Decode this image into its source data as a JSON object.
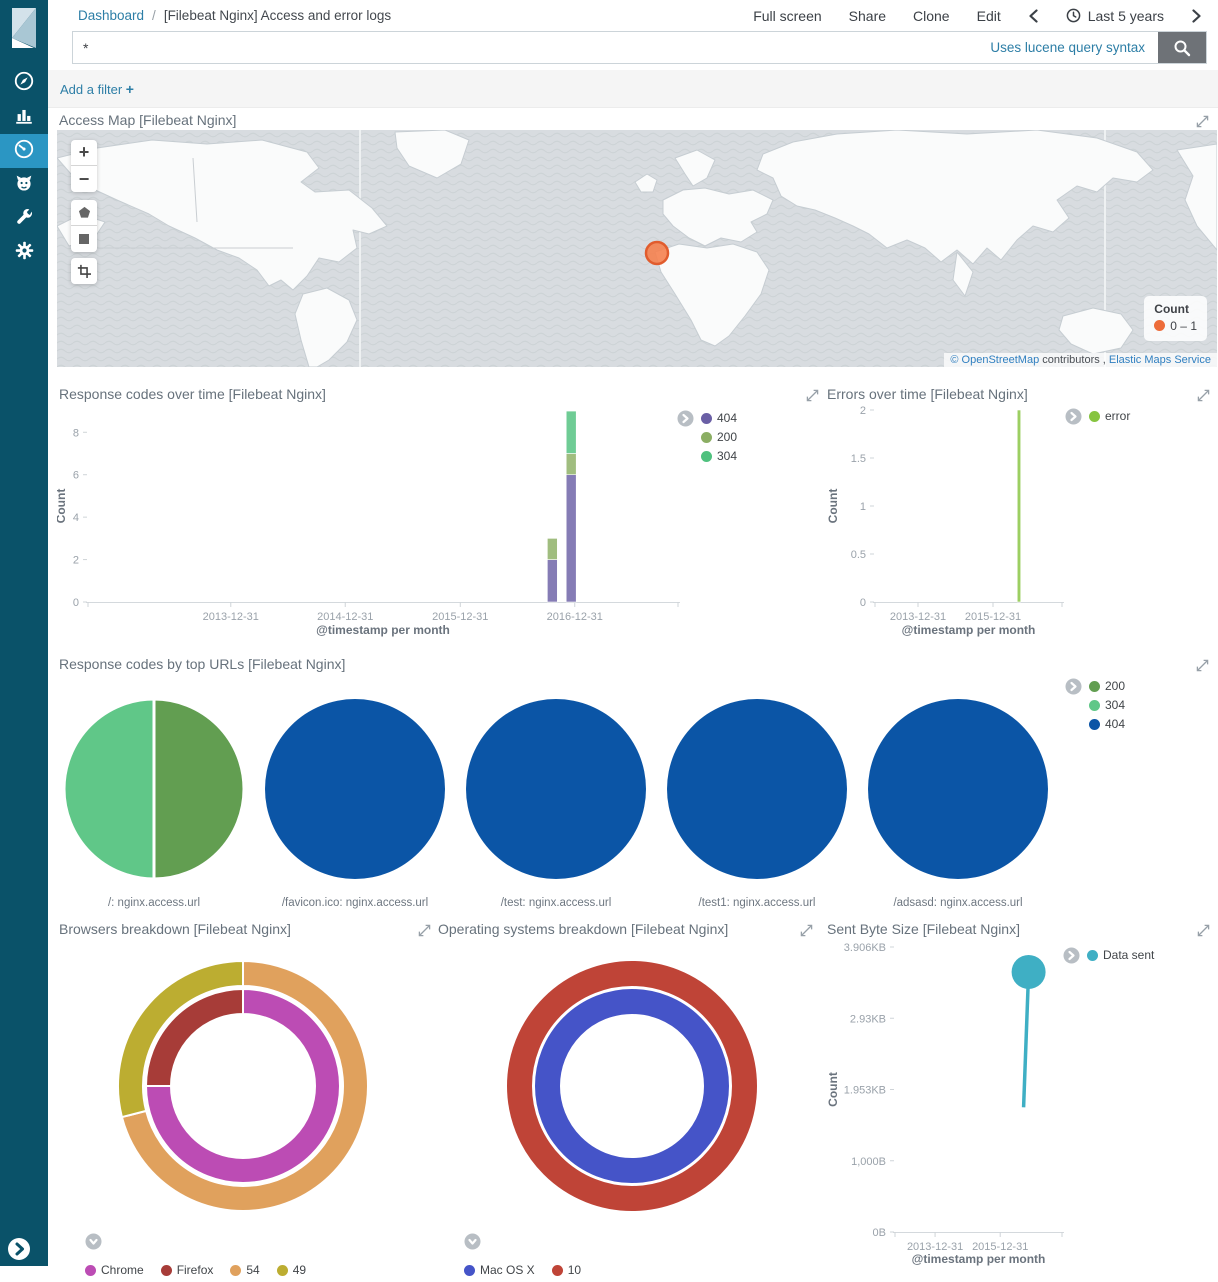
{
  "sidebar": {
    "items": [
      {
        "id": "discover",
        "icon": "compass-icon",
        "active": false
      },
      {
        "id": "visualize",
        "icon": "bar-chart-icon",
        "active": false
      },
      {
        "id": "dashboard",
        "icon": "gauge-icon",
        "active": true
      },
      {
        "id": "timelion",
        "icon": "timelion-icon",
        "active": false
      },
      {
        "id": "dev-tools",
        "icon": "wrench-icon",
        "active": false
      },
      {
        "id": "management",
        "icon": "gear-icon",
        "active": false
      }
    ],
    "colors": {
      "background": "#0a5269",
      "active_background": "#2b96c3"
    }
  },
  "header": {
    "breadcrumb": {
      "root": "Dashboard",
      "separator": "/",
      "current": "[Filebeat Nginx] Access and error logs"
    },
    "menu": {
      "full_screen": "Full screen",
      "share": "Share",
      "clone": "Clone",
      "edit": "Edit"
    },
    "time_picker": {
      "label": "Last 5 years"
    }
  },
  "search": {
    "value": "*",
    "hint": "Uses lucene query syntax"
  },
  "filter_bar": {
    "label": "Add a filter",
    "plus": "+"
  },
  "map": {
    "title": "Access Map [Filebeat Nginx]",
    "controls": {
      "zoom_in": "+",
      "zoom_out": "−",
      "tools": [
        "draw-polygon",
        "draw-rectangle",
        "crop"
      ]
    },
    "legend": {
      "title": "Count",
      "range": "0 – 1",
      "dot_color": "#ed6c3a"
    },
    "marker": {
      "fill": "#f5814f",
      "stroke": "#e15c2d"
    },
    "attribution": {
      "osm_link": "© OpenStreetMap",
      "middle": " contributors , ",
      "elastic_link": "Elastic Maps Service"
    }
  },
  "chart_data": [
    {
      "id": "response-codes",
      "type": "bar",
      "title": "Response codes over time [Filebeat Nginx]",
      "ylabel": "Count",
      "xlabel": "@timestamp per month",
      "ylim": [
        0,
        9.05
      ],
      "yticks": [
        {
          "v": 0,
          "label": "0"
        },
        {
          "v": 2,
          "label": "2"
        },
        {
          "v": 4,
          "label": "4"
        },
        {
          "v": 6,
          "label": "6"
        },
        {
          "v": 8,
          "label": "8"
        }
      ],
      "xticks": [
        {
          "f": 0.242,
          "label": "2013-12-31"
        },
        {
          "f": 0.436,
          "label": "2014-12-31"
        },
        {
          "f": 0.631,
          "label": "2015-12-31"
        },
        {
          "f": 0.825,
          "label": "2016-12-31"
        }
      ],
      "series": [
        {
          "name": "404",
          "color": "#6a5fa5"
        },
        {
          "name": "200",
          "color": "#8bae63"
        },
        {
          "name": "304",
          "color": "#4fc17e"
        }
      ],
      "bars": [
        {
          "f": 0.787,
          "stack": [
            2,
            1,
            0
          ]
        },
        {
          "f": 0.819,
          "stack": [
            6,
            1,
            2
          ]
        }
      ],
      "legend_position": "right"
    },
    {
      "id": "errors",
      "type": "bar",
      "title": "Errors over time [Filebeat Nginx]",
      "ylabel": "Count",
      "xlabel": "@timestamp per month",
      "ylim": [
        0,
        2
      ],
      "yticks": [
        {
          "v": 0,
          "label": "0"
        },
        {
          "v": 0.5,
          "label": "0.5"
        },
        {
          "v": 1,
          "label": "1"
        },
        {
          "v": 1.5,
          "label": "1.5"
        },
        {
          "v": 2,
          "label": "2"
        }
      ],
      "xticks": [
        {
          "f": 0.23,
          "label": "2013-12-31"
        },
        {
          "f": 0.631,
          "label": "2015-12-31"
        }
      ],
      "series": [
        {
          "name": "error",
          "color": "#86c440"
        }
      ],
      "bars": [
        {
          "f": 0.77,
          "stack": [
            2
          ]
        }
      ],
      "legend_position": "right"
    },
    {
      "id": "top-urls",
      "type": "pie",
      "title": "Response codes by top URLs [Filebeat Nginx]",
      "legend": [
        {
          "name": "200",
          "color": "#629e51"
        },
        {
          "name": "304",
          "color": "#60c788"
        },
        {
          "name": "404",
          "color": "#0b55a6"
        }
      ],
      "pies": [
        {
          "label": "/: nginx.access.url",
          "slices": [
            {
              "name": "200",
              "value": 50
            },
            {
              "name": "304",
              "value": 50
            }
          ]
        },
        {
          "label": "/favicon.ico: nginx.access.url",
          "slices": [
            {
              "name": "404",
              "value": 100
            }
          ]
        },
        {
          "label": "/test: nginx.access.url",
          "slices": [
            {
              "name": "404",
              "value": 100
            }
          ]
        },
        {
          "label": "/test1: nginx.access.url",
          "slices": [
            {
              "name": "404",
              "value": 100
            }
          ]
        },
        {
          "label": "/adsasd: nginx.access.url",
          "slices": [
            {
              "name": "404",
              "value": 100
            }
          ]
        }
      ]
    },
    {
      "id": "browsers",
      "type": "donut",
      "title": "Browsers breakdown [Filebeat Nginx]",
      "rings": {
        "inner": [
          {
            "name": "Chrome",
            "value": 75,
            "color": "#bc4cb4"
          },
          {
            "name": "Firefox",
            "value": 25,
            "color": "#a73c38"
          }
        ],
        "outer": [
          {
            "name": "54",
            "value": 71,
            "color": "#e0a15d"
          },
          {
            "name": "49",
            "value": 29,
            "color": "#bcad31"
          }
        ]
      },
      "legend": [
        {
          "name": "Chrome",
          "color": "#bc4cb4"
        },
        {
          "name": "Firefox",
          "color": "#a73c38"
        },
        {
          "name": "54",
          "color": "#e0a15d"
        },
        {
          "name": "49",
          "color": "#bcad31"
        }
      ]
    },
    {
      "id": "os",
      "type": "donut",
      "title": "Operating systems breakdown [Filebeat Nginx]",
      "rings": {
        "inner": [
          {
            "name": "Mac OS X",
            "value": 100,
            "color": "#4554c8"
          }
        ],
        "outer": [
          {
            "name": "10",
            "value": 100,
            "color": "#bf4437"
          }
        ]
      },
      "legend": [
        {
          "name": "Mac OS X",
          "color": "#4554c8"
        },
        {
          "name": "10",
          "color": "#bf4437"
        }
      ]
    },
    {
      "id": "sent-bytes",
      "type": "line-scatter",
      "title": "Sent Byte Size [Filebeat Nginx]",
      "ylabel": "Count",
      "xlabel": "@timestamp per month",
      "ylim": [
        0,
        4000
      ],
      "yticks": [
        {
          "v": 0,
          "label": "0B"
        },
        {
          "v": 1000,
          "label": "1,000B"
        },
        {
          "v": 2000,
          "label": "1.953KB"
        },
        {
          "v": 3000,
          "label": "2.93KB"
        },
        {
          "v": 4000,
          "label": "3.906KB"
        }
      ],
      "xticks": [
        {
          "f": 0.24,
          "label": "2013-12-31"
        },
        {
          "f": 0.63,
          "label": "2015-12-31"
        }
      ],
      "series": [
        {
          "name": "Data sent",
          "color": "#3fafc4"
        }
      ],
      "point": {
        "f": 0.8,
        "f0": 0.77,
        "value_b": 3650,
        "stem_value_b": 1750,
        "r": 17
      },
      "legend_position": "right"
    }
  ]
}
